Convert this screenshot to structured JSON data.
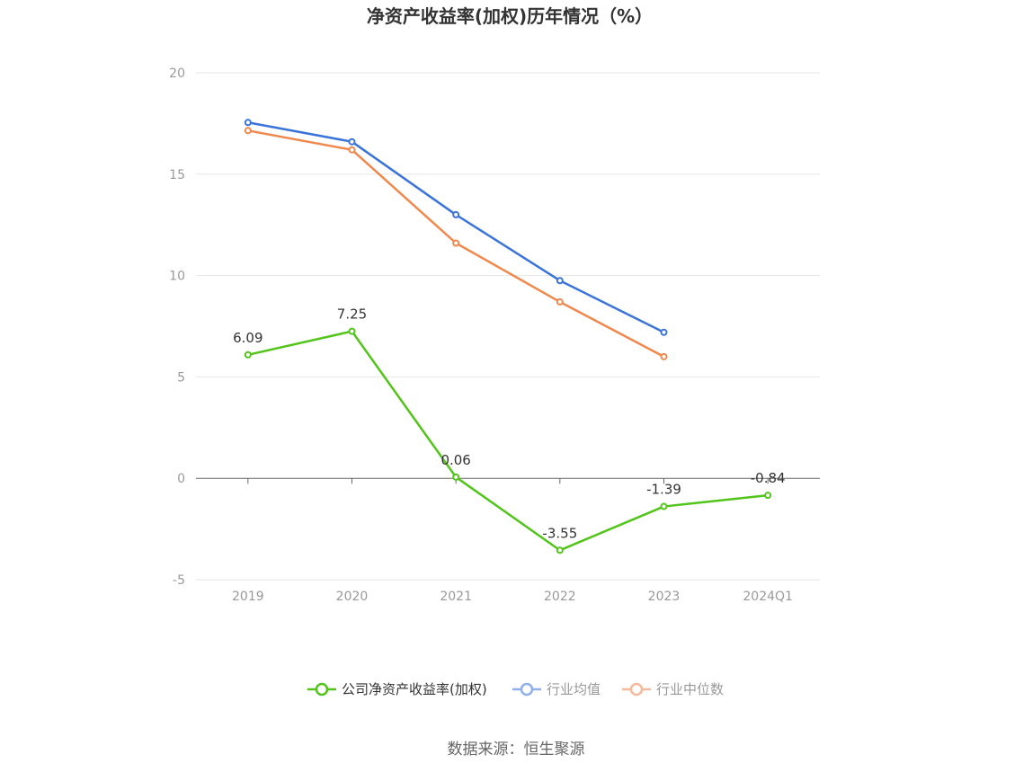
{
  "chart_data": {
    "type": "line",
    "title": "净资产收益率(加权)历年情况（%）",
    "categories": [
      "2019",
      "2020",
      "2021",
      "2022",
      "2023",
      "2024Q1"
    ],
    "ylim": [
      -5,
      20
    ],
    "yticks": [
      -5,
      0,
      5,
      10,
      15,
      20
    ],
    "grid": true,
    "legend_position": "bottom",
    "series": [
      {
        "name": "公司净资产收益率(加权)",
        "color": "#52c41a",
        "values": [
          6.09,
          7.25,
          0.06,
          -3.55,
          -1.39,
          -0.84
        ],
        "labels": [
          "6.09",
          "7.25",
          "0.06",
          "-3.55",
          "-1.39",
          "-0.84"
        ]
      },
      {
        "name": "行业均值",
        "color": "#3b74d9",
        "values": [
          17.55,
          16.6,
          13.0,
          9.75,
          7.2,
          null
        ]
      },
      {
        "name": "行业中位数",
        "color": "#f0884d",
        "values": [
          17.15,
          16.2,
          11.6,
          8.7,
          6.0,
          null
        ]
      }
    ],
    "legend_colors": [
      "#52c41a",
      "#8fb0ea",
      "#f5b99c"
    ],
    "legend_text_colors": [
      "#333333",
      "#999999",
      "#999999"
    ],
    "source": "数据来源：恒生聚源"
  }
}
